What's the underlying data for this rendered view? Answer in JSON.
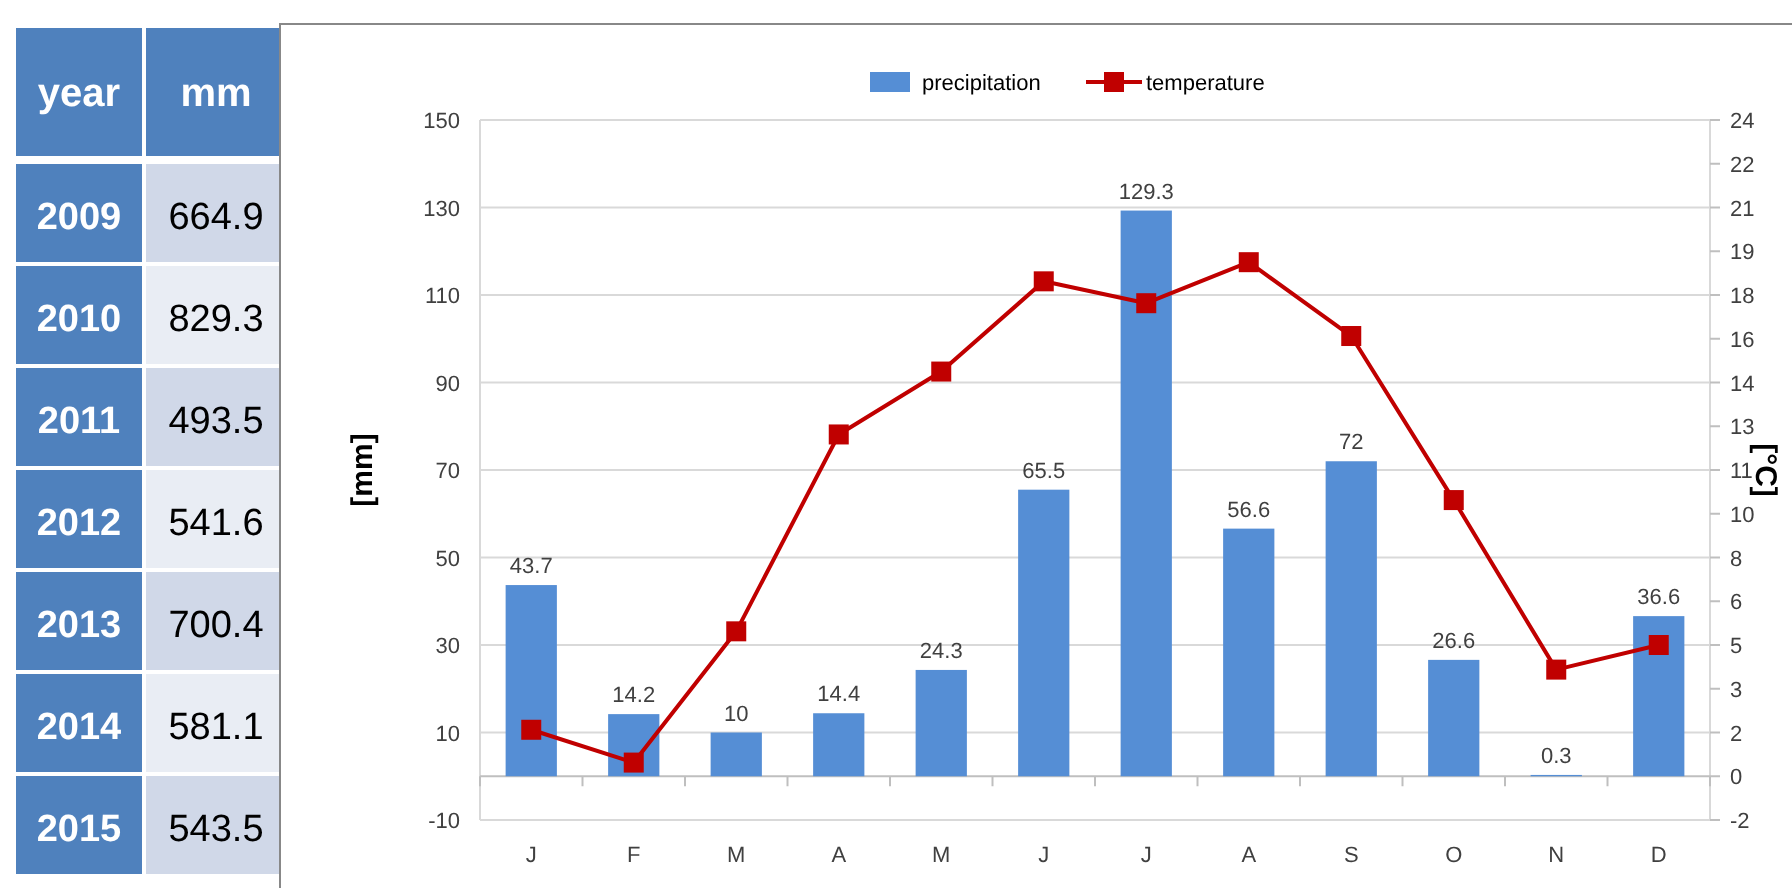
{
  "chart_data": [
    {
      "type": "heatmap",
      "ylabel": "year",
      "categories": [
        "mm"
      ],
      "y_categories": [
        "2009",
        "2010",
        "2011",
        "2012",
        "2013",
        "2014",
        "2015"
      ],
      "cells": [
        [
          664.9
        ],
        [
          829.3
        ],
        [
          493.5
        ],
        [
          541.6
        ],
        [
          700.4
        ],
        [
          581.1
        ],
        [
          543.5
        ]
      ],
      "data_labels": true
    },
    {
      "type": "bar",
      "ylabel": "[mm]",
      "y2label": "[°C]",
      "categories": [
        "J",
        "F",
        "M",
        "A",
        "M",
        "J",
        "J",
        "A",
        "S",
        "O",
        "N",
        "D"
      ],
      "legend": "top",
      "grid": "y",
      "marker": "square",
      "ylim": [
        -10,
        150
      ],
      "yticks": [
        -10,
        10,
        30,
        50,
        70,
        90,
        110,
        130,
        150
      ],
      "y2lim": [
        -1.6,
        24
      ],
      "y2ticks": [
        {
          "value": -1.6,
          "label": "-2"
        },
        0,
        {
          "value": 1.6,
          "label": "2"
        },
        {
          "value": 3.2,
          "label": "3"
        },
        {
          "value": 4.8,
          "label": "5"
        },
        {
          "value": 6.4,
          "label": "6"
        },
        8,
        {
          "value": 9.6,
          "label": "10"
        },
        {
          "value": 11.2,
          "label": "11"
        },
        {
          "value": 12.8,
          "label": "13"
        },
        {
          "value": 14.4,
          "label": "14"
        },
        16,
        {
          "value": 17.6,
          "label": "18"
        },
        {
          "value": 19.2,
          "label": "19"
        },
        {
          "value": 20.8,
          "label": "21"
        },
        {
          "value": 22.4,
          "label": "22"
        },
        24
      ],
      "series": [
        {
          "name": "precipitation",
          "type": "bar",
          "color": "#558ed5",
          "values": [
            43.7,
            14.2,
            10,
            14.4,
            24.3,
            65.5,
            129.3,
            56.6,
            72,
            26.6,
            0.3,
            36.6
          ],
          "value_labels": [
            "43.7",
            "14.2",
            "10",
            "14.4",
            "24.3",
            "65.5",
            "129.3",
            "56.6",
            "72",
            "26.6",
            "0.3",
            "36.6"
          ]
        },
        {
          "name": "temperature",
          "type": "line",
          "axis": "y2",
          "color": "#c00000",
          "values": [
            1.7,
            0.5,
            5.3,
            12.5,
            14.8,
            18.1,
            17.3,
            18.8,
            16.1,
            10.1,
            3.9,
            4.8
          ]
        }
      ]
    }
  ]
}
